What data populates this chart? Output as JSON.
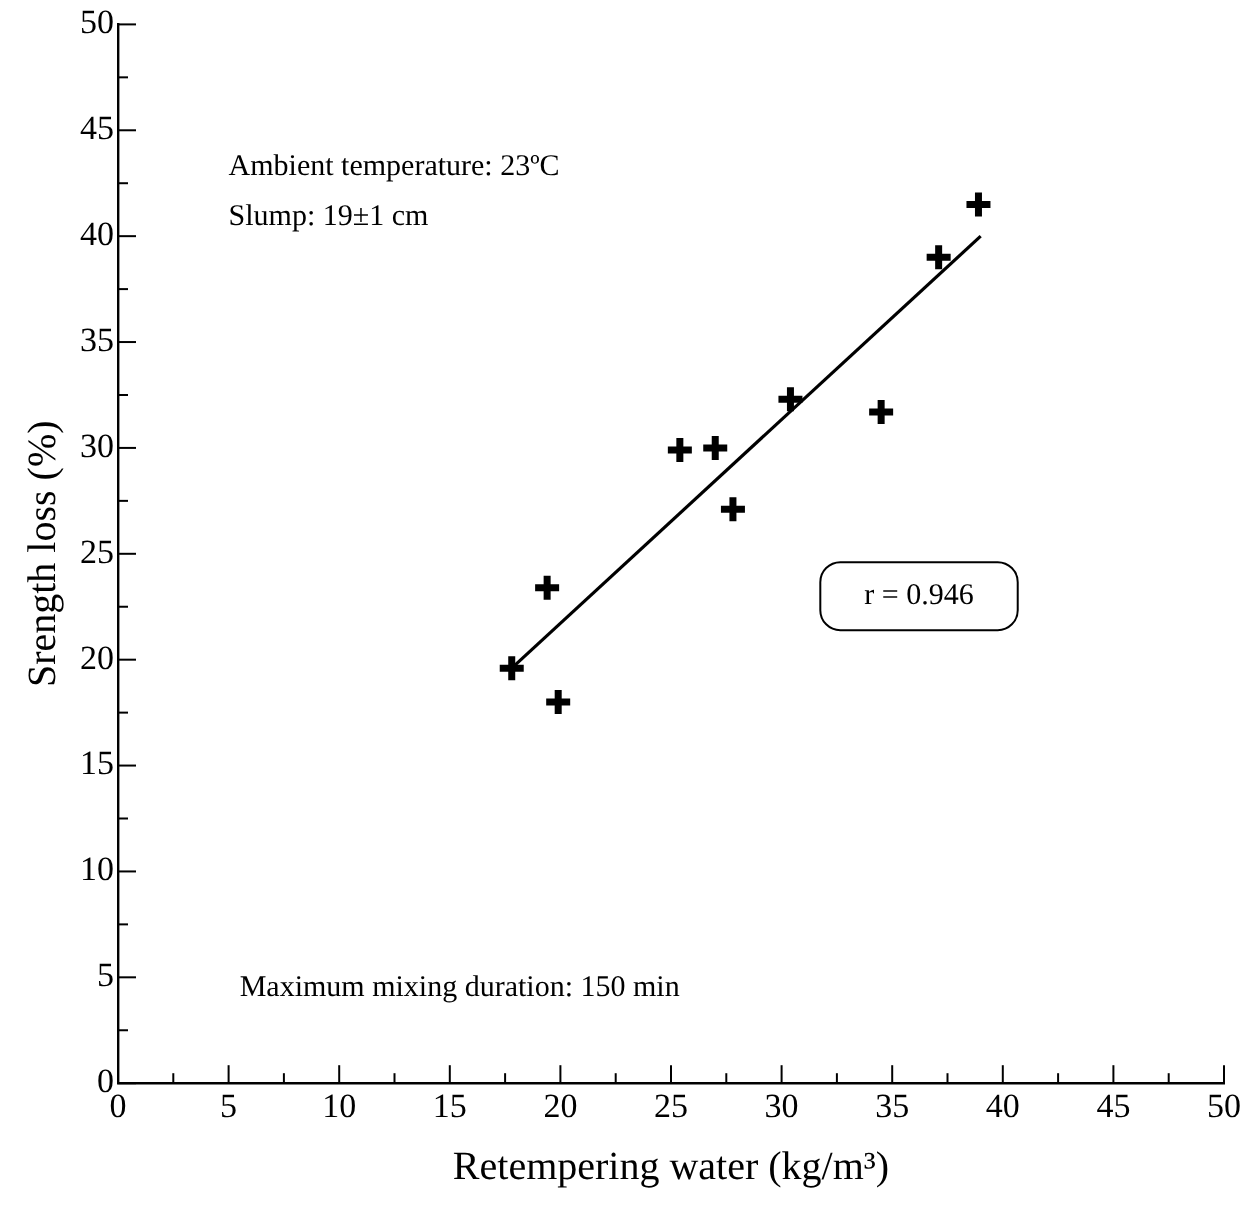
{
  "chart_data": {
    "type": "scatter",
    "xlabel": "Retempering water (kg/m³)",
    "ylabel": "Srength loss (%)",
    "annotations": [
      "Ambient temperature: 23ºC",
      "Slump: 19±1 cm",
      "Maximum mixing duration: 150 min",
      "r = 0.946"
    ],
    "xlim": [
      0,
      50
    ],
    "ylim": [
      0,
      50
    ],
    "xticks": [
      0,
      {
        "value": 2.5,
        "label": null
      },
      5,
      {
        "value": 7.5,
        "label": null
      },
      10,
      {
        "value": 12.5,
        "label": null
      },
      15,
      {
        "value": 17.5,
        "label": null
      },
      20,
      {
        "value": 22.5,
        "label": null
      },
      25,
      {
        "value": 27.5,
        "label": null
      },
      30,
      {
        "value": 32.5,
        "label": null
      },
      35,
      {
        "value": 37.5,
        "label": null
      },
      40,
      {
        "value": 42.5,
        "label": null
      },
      45,
      {
        "value": 47.5,
        "label": null
      },
      50
    ],
    "yticks": [
      0,
      {
        "value": 2.5,
        "label": null
      },
      5,
      {
        "value": 7.5,
        "label": null
      },
      10,
      {
        "value": 12.5,
        "label": null
      },
      15,
      {
        "value": 17.5,
        "label": null
      },
      20,
      {
        "value": 22.5,
        "label": null
      },
      25,
      {
        "value": 27.5,
        "label": null
      },
      30,
      {
        "value": 32.5,
        "label": null
      },
      35,
      {
        "value": 37.5,
        "label": null
      },
      40,
      {
        "value": 42.5,
        "label": null
      },
      45,
      {
        "value": 47.5,
        "label": null
      },
      50
    ],
    "grid": false,
    "legend": false,
    "marker": "cross",
    "series": [
      {
        "color": "#000000",
        "x": [
          17.8,
          19.4,
          19.9,
          25.4,
          27.0,
          27.8,
          30.4,
          34.5,
          37.1,
          38.9
        ],
        "values": [
          19.6,
          23.4,
          18.0,
          29.9,
          30.0,
          27.1,
          32.3,
          31.7,
          39.0,
          41.5
        ]
      },
      {
        "type": "line",
        "color": "#000000",
        "marker": "none",
        "line_style": "solid",
        "x": [
          17.8,
          39.0
        ],
        "values": [
          19.6,
          40.0
        ]
      }
    ]
  }
}
